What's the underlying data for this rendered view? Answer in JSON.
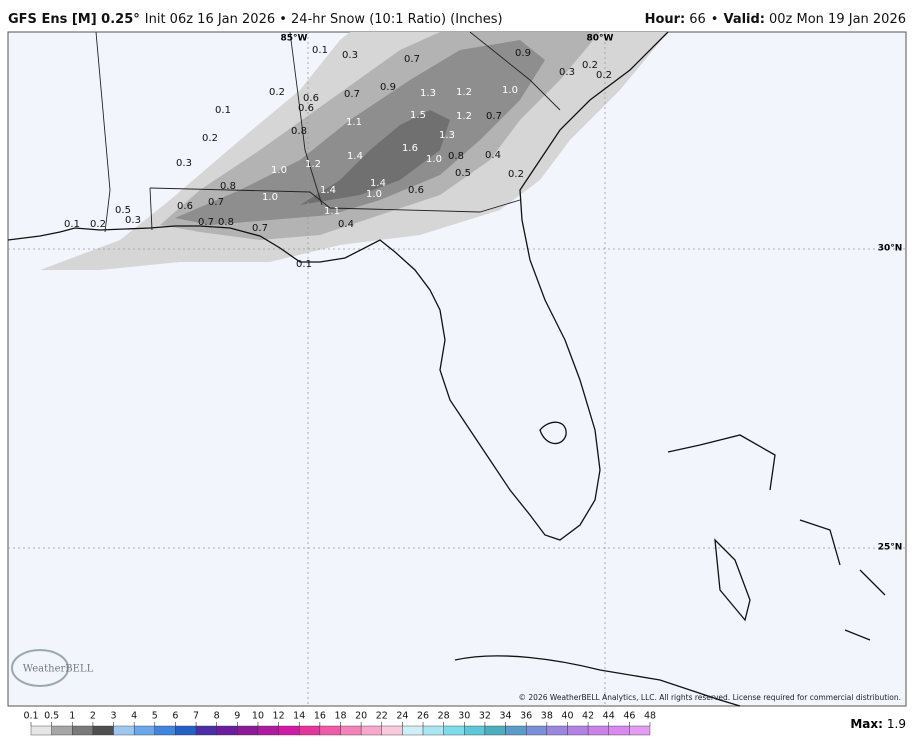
{
  "header": {
    "model": "GFS Ens [M] 0.25°",
    "description": "Init 06z 16 Jan 2026 • 24-hr Snow (10:1 Ratio) (Inches)",
    "hour_label": "Hour:",
    "hour": "66",
    "separator": "•",
    "valid_label": "Valid:",
    "valid": "00z Mon 19 Jan 2026"
  },
  "map": {
    "longitude_labels": [
      "85°W",
      "80°W"
    ],
    "latitude_labels": [
      "30°N",
      "25°N"
    ],
    "snow_labels": [
      "0.1",
      "0.3",
      "0.7",
      "0.9",
      "0.3",
      "0.2",
      "0.2",
      "0.2",
      "0.6",
      "0.7",
      "0.9",
      "1.3",
      "1.2",
      "1.0",
      "0.1",
      "0.6",
      "1.1",
      "1.5",
      "1.2",
      "0.7",
      "0.2",
      "0.8",
      "1.3",
      "1.6",
      "1.4",
      "1.0",
      "0.8",
      "0.4",
      "0.3",
      "1.2",
      "1.0",
      "0.5",
      "0.2",
      "1.4",
      "0.8",
      "1.4",
      "1.0",
      "0.6",
      "1.0",
      "0.6",
      "0.7",
      "0.5",
      "0.3",
      "1.1",
      "0.1",
      "0.2",
      "0.7",
      "0.8",
      "0.7",
      "0.4",
      "0.1"
    ],
    "logo": "WeatherBELL",
    "copyright": "© 2026 WeatherBELL Analytics, LLC. All rights reserved. License required for commercial distribution."
  },
  "colorbar": {
    "ticks": [
      0.1,
      0.5,
      1,
      2,
      3,
      4,
      5,
      6,
      7,
      8,
      9,
      10,
      12,
      14,
      16,
      18,
      20,
      22,
      24,
      26,
      28,
      30,
      32,
      34,
      36,
      38,
      40,
      42,
      44,
      46,
      48
    ],
    "colors": [
      "#e6e6e6",
      "#a6a6a6",
      "#7a7a7a",
      "#4f4f4f",
      "#9cc8f0",
      "#6aa8ea",
      "#3f86e0",
      "#2262c8",
      "#4a2ea8",
      "#6a1e9e",
      "#8a1a98",
      "#b01aa0",
      "#d21aa6",
      "#e8329c",
      "#f05aa8",
      "#f582b8",
      "#f8a8cc",
      "#fbc8dc",
      "#d0eef6",
      "#a8e6f2",
      "#7cdcec",
      "#5ac8d8",
      "#4ab0c0",
      "#5a9cc8",
      "#7a90d8",
      "#9a88e0",
      "#b282e6",
      "#c882ea",
      "#d888ee",
      "#e49cf2"
    ],
    "max_label": "Max:",
    "max": 1.9
  }
}
